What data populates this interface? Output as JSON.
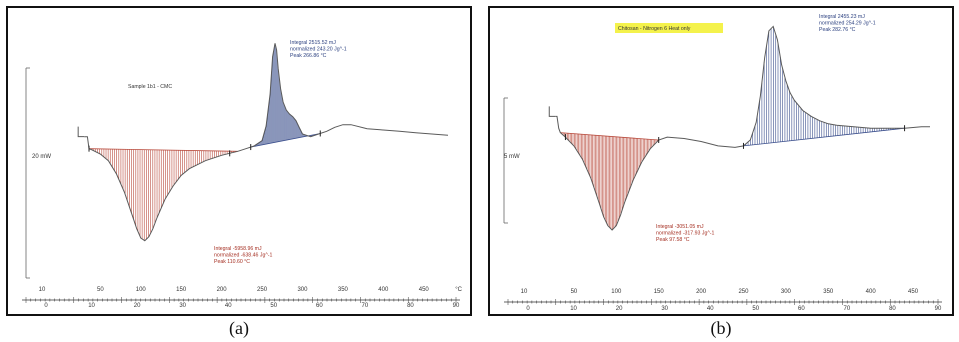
{
  "captions": [
    "(a)",
    "(b)"
  ],
  "chart_data": [
    {
      "type": "line",
      "title": "Sample 1b1 - CMC",
      "ylabel": "20 mW",
      "xlabel": "",
      "x_ticks_temp": [
        "10",
        "50",
        "100",
        "150",
        "200",
        "250",
        "300",
        "350",
        "400",
        "450"
      ],
      "x_ticks_time": [
        "0",
        "10",
        "20",
        "30",
        "40",
        "50",
        "60",
        "70",
        "80",
        "90"
      ],
      "x_unit_label": "°C",
      "xlim": [
        10,
        480
      ],
      "ylim": [
        -10,
        8
      ],
      "curve": {
        "x": [
          30,
          34,
          36,
          40,
          50,
          60,
          70,
          80,
          90,
          95,
          100,
          105,
          110,
          115,
          120,
          130,
          140,
          150,
          160,
          180,
          200,
          220,
          230,
          240,
          250,
          255,
          260,
          263,
          266,
          268,
          270,
          273,
          276,
          280,
          284,
          288,
          292,
          296,
          300,
          310,
          320,
          330,
          340,
          350,
          360,
          380,
          400,
          420,
          440,
          460,
          480
        ],
        "y": [
          0.6,
          0.6,
          -0.3,
          -0.4,
          -0.7,
          -1.2,
          -2.2,
          -3.6,
          -5.4,
          -6.3,
          -7.0,
          -7.2,
          -6.9,
          -6.3,
          -5.5,
          -4.1,
          -3.1,
          -2.3,
          -1.8,
          -1.2,
          -0.8,
          -0.5,
          -0.3,
          -0.1,
          0.3,
          1.4,
          3.8,
          6.6,
          7.6,
          7.1,
          5.7,
          4.2,
          3.2,
          2.6,
          2.3,
          2.1,
          1.8,
          1.3,
          0.8,
          0.6,
          0.8,
          1.0,
          1.3,
          1.5,
          1.5,
          1.2,
          1.1,
          1.0,
          0.9,
          0.8,
          0.7
        ]
      },
      "peaks": [
        {
          "from": 36,
          "to": 220,
          "lines": [
            "Integral   -5958.96 mJ",
            "normalized   -638.46 Jg^-1",
            "Peak         110.60 °C"
          ]
        },
        {
          "from": 236,
          "to": 322,
          "lines": [
            "Integral   2515.52 mJ",
            "normalized   243.20 Jg^-1",
            "Peak         266.86 °C"
          ]
        }
      ],
      "markers_x": [
        36,
        210,
        236,
        322
      ]
    },
    {
      "type": "line",
      "title": "Chitosan - Nitrogen 6 Heat only",
      "ylabel": "5 mW",
      "xlabel": "",
      "x_ticks_temp": [
        "10",
        "50",
        "100",
        "150",
        "200",
        "250",
        "300",
        "350",
        "400",
        "450"
      ],
      "x_ticks_time": [
        "0",
        "10",
        "20",
        "30",
        "40",
        "50",
        "60",
        "70",
        "80",
        "90"
      ],
      "x_unit_label": "",
      "xlim": [
        10,
        470
      ],
      "ylim": [
        -8,
        8
      ],
      "curve": {
        "x": [
          28,
          30,
          32,
          34,
          40,
          50,
          60,
          70,
          80,
          85,
          90,
          95,
          100,
          105,
          110,
          120,
          130,
          140,
          150,
          160,
          180,
          200,
          220,
          240,
          250,
          258,
          265,
          270,
          275,
          280,
          285,
          290,
          295,
          300,
          305,
          310,
          320,
          330,
          340,
          350,
          360,
          380,
          400,
          420,
          440,
          460,
          470
        ],
        "y": [
          1.6,
          1.6,
          0.8,
          0.5,
          0.2,
          -0.4,
          -1.3,
          -2.6,
          -4.3,
          -5.2,
          -5.8,
          -6.1,
          -5.8,
          -5.1,
          -4.2,
          -2.7,
          -1.5,
          -0.6,
          0.0,
          0.2,
          0.1,
          -0.1,
          -0.4,
          -0.5,
          -0.4,
          0.0,
          1.2,
          3.0,
          5.6,
          7.4,
          7.7,
          6.8,
          5.1,
          4.0,
          3.2,
          2.7,
          2.0,
          1.6,
          1.3,
          1.1,
          1.0,
          0.9,
          0.8,
          0.8,
          0.8,
          0.9,
          0.9
        ]
      },
      "peaks": [
        {
          "from": 34,
          "to": 150,
          "lines": [
            "Integral   -3051.05 mJ",
            "normalized   -317.93 Jg^-1",
            "Peak         97.58 °C"
          ]
        },
        {
          "from": 250,
          "to": 440,
          "lines": [
            "Integral   2455.23 mJ",
            "normalized   254.29 Jg^-1",
            "Peak         282.76 °C"
          ]
        }
      ],
      "markers_x": [
        40,
        150,
        250,
        440
      ]
    }
  ],
  "colors": {
    "curve": "#5a5a5a",
    "endo_fill": "#b84a3c",
    "exo_fill": "#3a4e8c",
    "endo_text": "#a52f22",
    "exo_text": "#2a3f7f",
    "title_highlight": "#f4f24c",
    "axis": "#333333"
  }
}
